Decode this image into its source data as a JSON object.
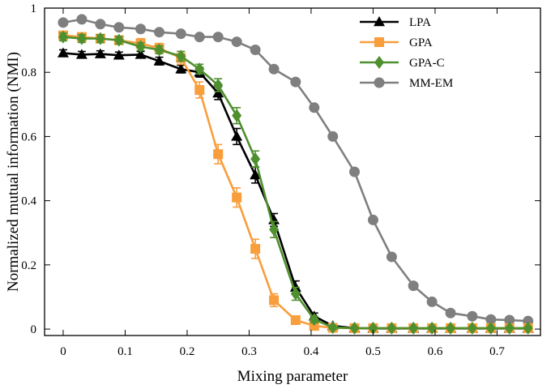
{
  "chart_data": {
    "type": "line",
    "title": "",
    "xlabel": "Mixing parameter",
    "ylabel": "Normalized mutual information (NMI)",
    "xlim": [
      -0.03,
      0.77
    ],
    "ylim": [
      -0.02,
      1.0
    ],
    "xticks": [
      0,
      0.1,
      0.2,
      0.3,
      0.4,
      0.5,
      0.6,
      0.7
    ],
    "xtick_labels": [
      "0",
      "0.1",
      "0.2",
      "0.3",
      "0.4",
      "0.5",
      "0.6",
      "0.7"
    ],
    "yticks": [
      0,
      0.2,
      0.4,
      0.6,
      0.8,
      1
    ],
    "ytick_labels": [
      "0",
      "0.2",
      "0.4",
      "0.6",
      "0.8",
      "1"
    ],
    "grid": false,
    "legend_position": "top-right",
    "series": [
      {
        "name": "LPA",
        "color": "#000000",
        "marker": "triangle",
        "x": [
          0,
          0.03,
          0.06,
          0.09,
          0.125,
          0.155,
          0.19,
          0.22,
          0.25,
          0.28,
          0.31,
          0.34,
          0.375,
          0.405,
          0.435,
          0.47,
          0.5,
          0.53,
          0.565,
          0.595,
          0.625,
          0.66,
          0.69,
          0.72,
          0.75
        ],
        "y": [
          0.86,
          0.855,
          0.857,
          0.853,
          0.855,
          0.835,
          0.81,
          0.8,
          0.735,
          0.6,
          0.48,
          0.34,
          0.13,
          0.04,
          0.01,
          0.003,
          0.002,
          0.002,
          0.002,
          0.002,
          0.002,
          0.002,
          0.002,
          0.002,
          0.002
        ],
        "error": [
          0.01,
          0.01,
          0.01,
          0.01,
          0.01,
          0.012,
          0.012,
          0.015,
          0.02,
          0.025,
          0.025,
          0.02,
          0.02,
          0.01,
          0.005,
          0,
          0,
          0,
          0,
          0,
          0,
          0,
          0,
          0,
          0
        ]
      },
      {
        "name": "GPA",
        "color": "#F89E3C",
        "marker": "square",
        "x": [
          0,
          0.03,
          0.06,
          0.09,
          0.125,
          0.155,
          0.19,
          0.22,
          0.25,
          0.28,
          0.31,
          0.34,
          0.375,
          0.405,
          0.435,
          0.47,
          0.5,
          0.53,
          0.565,
          0.595,
          0.625,
          0.66,
          0.69,
          0.72,
          0.75
        ],
        "y": [
          0.915,
          0.91,
          0.905,
          0.9,
          0.89,
          0.875,
          0.845,
          0.745,
          0.545,
          0.41,
          0.25,
          0.09,
          0.028,
          0.01,
          0.004,
          0.003,
          0.003,
          0.003,
          0.003,
          0.003,
          0.003,
          0.003,
          0.003,
          0.003,
          0.003
        ],
        "error": [
          0.012,
          0.012,
          0.012,
          0.012,
          0.015,
          0.015,
          0.02,
          0.025,
          0.03,
          0.03,
          0.03,
          0.02,
          0.01,
          0.005,
          0,
          0,
          0,
          0,
          0,
          0,
          0,
          0,
          0,
          0,
          0
        ]
      },
      {
        "name": "GPA-C",
        "color": "#4E8F2E",
        "marker": "diamond",
        "x": [
          0,
          0.03,
          0.06,
          0.09,
          0.125,
          0.155,
          0.19,
          0.22,
          0.25,
          0.28,
          0.31,
          0.34,
          0.375,
          0.405,
          0.435,
          0.47,
          0.5,
          0.53,
          0.565,
          0.595,
          0.625,
          0.66,
          0.69,
          0.72,
          0.75
        ],
        "y": [
          0.91,
          0.905,
          0.905,
          0.9,
          0.88,
          0.87,
          0.85,
          0.81,
          0.76,
          0.665,
          0.53,
          0.31,
          0.11,
          0.03,
          0.005,
          0.003,
          0.003,
          0.003,
          0.003,
          0.003,
          0.003,
          0.003,
          0.003,
          0.003,
          0.003
        ],
        "error": [
          0.012,
          0.012,
          0.012,
          0.012,
          0.012,
          0.012,
          0.015,
          0.015,
          0.02,
          0.025,
          0.025,
          0.025,
          0.02,
          0.01,
          0.005,
          0,
          0,
          0,
          0,
          0,
          0,
          0,
          0,
          0,
          0
        ]
      },
      {
        "name": "MM-EM",
        "color": "#7F7F7F",
        "marker": "circle",
        "x": [
          0,
          0.03,
          0.06,
          0.09,
          0.125,
          0.155,
          0.19,
          0.22,
          0.25,
          0.28,
          0.31,
          0.34,
          0.375,
          0.405,
          0.435,
          0.47,
          0.5,
          0.53,
          0.565,
          0.595,
          0.625,
          0.66,
          0.69,
          0.72,
          0.75
        ],
        "y": [
          0.955,
          0.965,
          0.95,
          0.94,
          0.935,
          0.925,
          0.92,
          0.91,
          0.91,
          0.895,
          0.87,
          0.81,
          0.77,
          0.69,
          0.6,
          0.49,
          0.34,
          0.225,
          0.135,
          0.085,
          0.05,
          0.04,
          0.03,
          0.028,
          0.025
        ],
        "error": [
          0,
          0,
          0,
          0,
          0,
          0,
          0,
          0,
          0,
          0,
          0,
          0,
          0,
          0,
          0,
          0,
          0,
          0,
          0,
          0,
          0,
          0,
          0,
          0,
          0
        ]
      }
    ]
  }
}
